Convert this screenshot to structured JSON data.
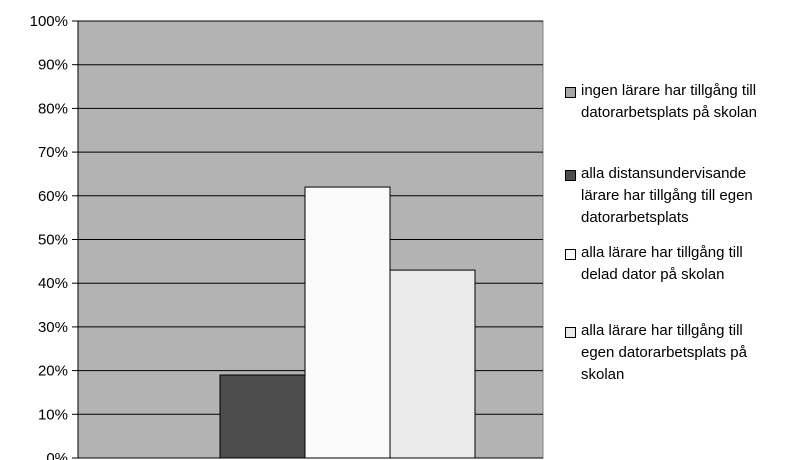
{
  "chart_data": {
    "type": "bar",
    "categories": [
      ""
    ],
    "series": [
      {
        "name": "ingen lärare har tillgång till datorarbetsplats på skolan",
        "values": [
          0
        ],
        "color": "#a6a6a6"
      },
      {
        "name": "alla distansundervisande lärare har tillgång till egen datorarbetsplats",
        "values": [
          19
        ],
        "color": "#4d4d4d"
      },
      {
        "name": "alla lärare har tillgång till delad dator på skolan",
        "values": [
          62
        ],
        "color": "#fbfbfb"
      },
      {
        "name": "alla lärare har tillgång till egen datorarbetsplats på skolan",
        "values": [
          43
        ],
        "color": "#eaeaea"
      }
    ],
    "ylim": [
      0,
      100
    ],
    "yticks": [
      0,
      10,
      20,
      30,
      40,
      50,
      60,
      70,
      80,
      90,
      100
    ],
    "ytick_labels": [
      "0%",
      "10%",
      "20%",
      "30%",
      "40%",
      "50%",
      "60%",
      "70%",
      "80%",
      "90%",
      "100%"
    ],
    "grid": true,
    "plot_background": "#b3b3b3",
    "legend_position": "right"
  },
  "legend": {
    "items": [
      {
        "label": "ingen lärare har tillgång till\ndatorarbetsplats på skolan",
        "color": "#a6a6a6"
      },
      {
        "label": "alla distansundervisande\nlärare har tillgång till egen\ndatorarbetsplats",
        "color": "#4d4d4d"
      },
      {
        "label": "alla lärare har tillgång till\ndelad dator på skolan",
        "color": "#fbfbfb"
      },
      {
        "label": "alla lärare har tillgång till\negen datorarbetsplats på\nskolan",
        "color": "#eaeaea"
      }
    ]
  }
}
